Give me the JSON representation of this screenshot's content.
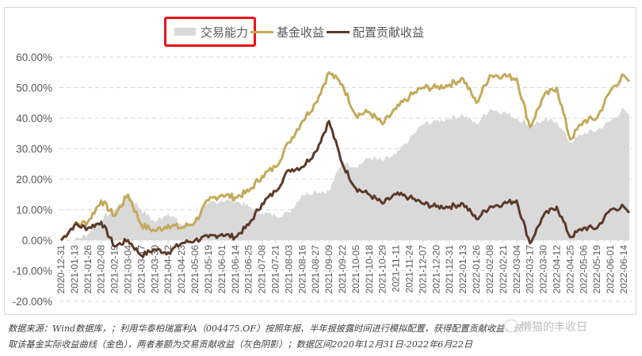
{
  "chart_data": {
    "type": "line",
    "title": "",
    "xlabel": "",
    "ylabel": "",
    "ylim": [
      -0.2,
      0.6
    ],
    "yticks": [
      "60.00%",
      "50.00%",
      "40.00%",
      "30.00%",
      "20.00%",
      "10.00%",
      "0.00%",
      "-10.00%",
      "-20.00%"
    ],
    "grid": "horizontal dashed",
    "legend_position": "top-center",
    "legend": [
      {
        "name": "交易能力",
        "type": "area",
        "color": "#d9d9d9"
      },
      {
        "name": "基金收益",
        "type": "line",
        "color": "#c4aa5a"
      },
      {
        "name": "配置贡献收益",
        "type": "line",
        "color": "#5c3a2a"
      }
    ],
    "categories": [
      "2020-12-31",
      "2021-01-13",
      "2021-01-26",
      "2021-02-08",
      "2021-02-19",
      "2021-03-04",
      "2021-03-17",
      "2021-03-30",
      "2021-04-12",
      "2021-04-23",
      "2021-05-06",
      "2021-05-19",
      "2021-06-01",
      "2021-06-14",
      "2021-06-25",
      "2021-07-08",
      "2021-07-21",
      "2021-08-03",
      "2021-08-16",
      "2021-08-27",
      "2021-09-09",
      "2021-09-22",
      "2021-10-05",
      "2021-10-18",
      "2021-10-29",
      "2021-11-11",
      "2021-11-24",
      "2021-12-07",
      "2021-12-20",
      "2021-12-31",
      "2022-01-13",
      "2022-01-26",
      "2022-02-08",
      "2022-02-21",
      "2022-03-04",
      "2022-03-17",
      "2022-03-30",
      "2022-04-12",
      "2022-04-25",
      "2022-05-06",
      "2022-05-19",
      "2022-06-01",
      "2022-06-14"
    ],
    "series": [
      {
        "name": "基金收益",
        "values": [
          0.0,
          0.05,
          0.06,
          0.13,
          0.08,
          0.15,
          0.05,
          0.03,
          0.05,
          0.04,
          0.06,
          0.13,
          0.15,
          0.14,
          0.16,
          0.21,
          0.24,
          0.32,
          0.39,
          0.45,
          0.55,
          0.51,
          0.41,
          0.42,
          0.38,
          0.43,
          0.47,
          0.5,
          0.5,
          0.51,
          0.53,
          0.45,
          0.54,
          0.54,
          0.53,
          0.37,
          0.47,
          0.5,
          0.33,
          0.39,
          0.4,
          0.49,
          0.54
        ]
      },
      {
        "name": "配置贡献收益",
        "values": [
          0.0,
          0.05,
          0.04,
          0.06,
          -0.02,
          0.0,
          -0.05,
          -0.03,
          -0.04,
          -0.01,
          0.0,
          0.01,
          0.02,
          0.01,
          0.05,
          0.12,
          0.16,
          0.23,
          0.24,
          0.29,
          0.39,
          0.25,
          0.17,
          0.15,
          0.12,
          0.15,
          0.14,
          0.12,
          0.11,
          0.11,
          0.12,
          0.07,
          0.11,
          0.12,
          0.13,
          -0.01,
          0.08,
          0.11,
          0.01,
          0.04,
          0.04,
          0.1,
          0.11
        ]
      },
      {
        "name": "交易能力",
        "values": [
          0.0,
          0.0,
          0.02,
          0.07,
          0.1,
          0.15,
          0.1,
          0.06,
          0.09,
          0.05,
          0.06,
          0.12,
          0.13,
          0.13,
          0.11,
          0.09,
          0.08,
          0.09,
          0.15,
          0.16,
          0.16,
          0.26,
          0.24,
          0.27,
          0.26,
          0.28,
          0.33,
          0.38,
          0.39,
          0.4,
          0.41,
          0.38,
          0.43,
          0.42,
          0.4,
          0.38,
          0.39,
          0.39,
          0.32,
          0.35,
          0.36,
          0.39,
          0.43
        ]
      }
    ],
    "annotations": [
      "legend item 交易能力 highlighted with red box"
    ]
  },
  "legend": {
    "area_label": "交易能力",
    "gold_label": "基金收益",
    "brown_label": "配置贡献收益"
  },
  "colors": {
    "gold": "#c4aa5a",
    "brown": "#5c3a2a",
    "area": "#d9d9d9",
    "grid": "#d9d9d9",
    "highlight": "#e8141a"
  },
  "footnote": {
    "line1": "数据来源：Wind数据库，；利用华泰柏瑞富利A（004475.OF）按照年报、半年报披露时间进行模拟配置，获得配置贡献收益，获",
    "line2": "取该基金实际收益曲线（金色），两者差额为交易贡献收益（灰色阴影）；数据区间2020年12月31日-2022年6月22日"
  },
  "watermark": {
    "text": "懒猫的丰收日"
  }
}
